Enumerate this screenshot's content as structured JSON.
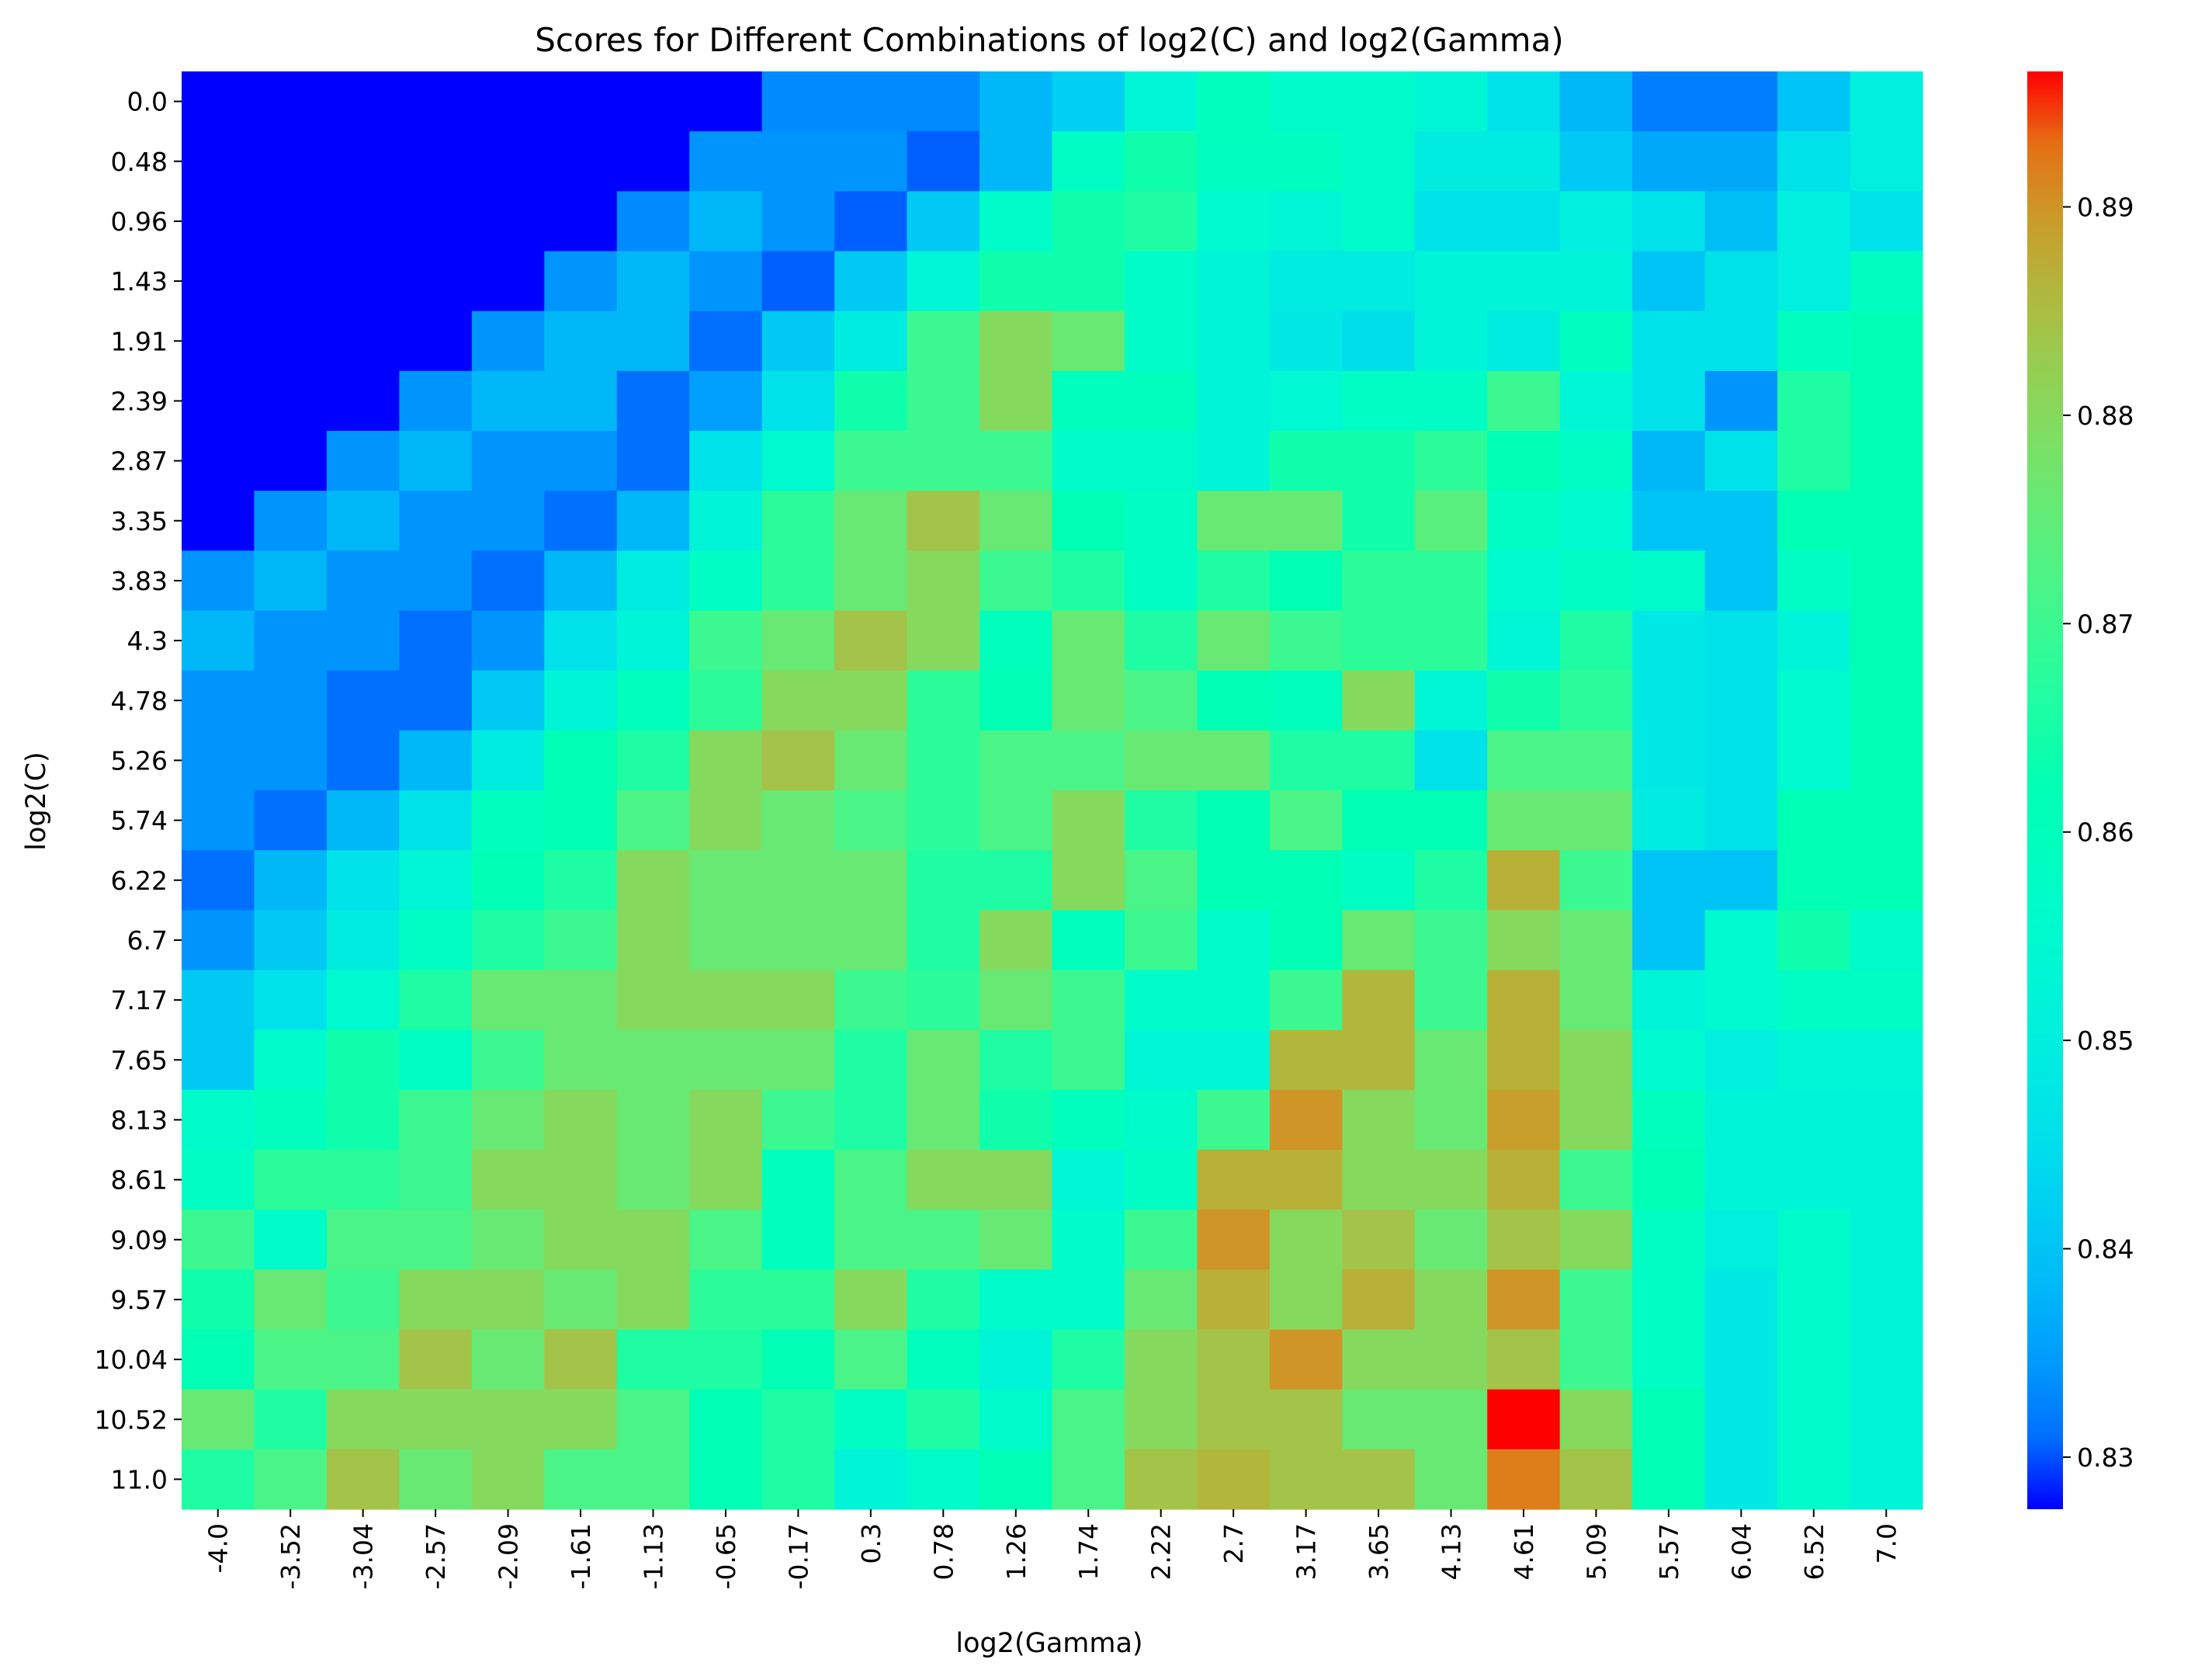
{
  "chart_data": {
    "type": "heatmap",
    "title": "Scores for Different Combinations of log2(C) and log2(Gamma)",
    "xlabel": "log2(Gamma)",
    "ylabel": "log2(C)",
    "x": [
      "-4.0",
      "-3.52",
      "-3.04",
      "-2.57",
      "-2.09",
      "-1.61",
      "-1.13",
      "-0.65",
      "-0.17",
      "0.3",
      "0.78",
      "1.26",
      "1.74",
      "2.22",
      "2.7",
      "3.17",
      "3.65",
      "4.13",
      "4.61",
      "5.09",
      "5.57",
      "6.04",
      "6.52",
      "7.0"
    ],
    "y": [
      "0.0",
      "0.48",
      "0.96",
      "1.43",
      "1.91",
      "2.39",
      "2.87",
      "3.35",
      "3.83",
      "4.3",
      "4.78",
      "5.26",
      "5.74",
      "6.22",
      "6.7",
      "7.17",
      "7.65",
      "8.13",
      "8.61",
      "9.09",
      "9.57",
      "10.04",
      "10.52",
      "11.0"
    ],
    "colormap": "rainbow",
    "vmin": 0.8275,
    "vmax": 0.8965,
    "colorbar_ticks": [
      "0.83",
      "0.84",
      "0.85",
      "0.86",
      "0.87",
      "0.88",
      "0.89"
    ],
    "colorbar_tick_values": [
      0.83,
      0.84,
      0.85,
      0.86,
      0.87,
      0.88,
      0.89
    ],
    "values": [
      [
        0.8275,
        0.8275,
        0.8275,
        0.8275,
        0.8275,
        0.8275,
        0.8275,
        0.8275,
        0.833,
        0.833,
        0.833,
        0.838,
        0.842,
        0.853,
        0.86,
        0.856,
        0.856,
        0.853,
        0.846,
        0.838,
        0.832,
        0.832,
        0.84,
        0.85
      ],
      [
        0.8275,
        0.8275,
        0.8275,
        0.8275,
        0.8275,
        0.8275,
        0.8275,
        0.834,
        0.834,
        0.834,
        0.83,
        0.838,
        0.858,
        0.864,
        0.859,
        0.859,
        0.856,
        0.849,
        0.849,
        0.841,
        0.836,
        0.836,
        0.846,
        0.85
      ],
      [
        0.8275,
        0.8275,
        0.8275,
        0.8275,
        0.8275,
        0.8275,
        0.833,
        0.838,
        0.834,
        0.83,
        0.841,
        0.857,
        0.864,
        0.866,
        0.855,
        0.853,
        0.856,
        0.846,
        0.846,
        0.85,
        0.846,
        0.839,
        0.85,
        0.846
      ],
      [
        0.8275,
        0.8275,
        0.8275,
        0.8275,
        0.8275,
        0.834,
        0.838,
        0.834,
        0.83,
        0.841,
        0.853,
        0.864,
        0.864,
        0.857,
        0.852,
        0.849,
        0.849,
        0.852,
        0.852,
        0.852,
        0.84,
        0.846,
        0.85,
        0.859
      ],
      [
        0.8275,
        0.8275,
        0.8275,
        0.8275,
        0.834,
        0.838,
        0.838,
        0.831,
        0.841,
        0.849,
        0.87,
        0.88,
        0.876,
        0.857,
        0.852,
        0.848,
        0.845,
        0.852,
        0.849,
        0.859,
        0.846,
        0.846,
        0.859,
        0.862
      ],
      [
        0.8275,
        0.8275,
        0.8275,
        0.834,
        0.838,
        0.838,
        0.831,
        0.835,
        0.846,
        0.864,
        0.87,
        0.88,
        0.86,
        0.86,
        0.852,
        0.854,
        0.858,
        0.858,
        0.87,
        0.853,
        0.846,
        0.834,
        0.866,
        0.862
      ],
      [
        0.8275,
        0.8275,
        0.834,
        0.838,
        0.834,
        0.834,
        0.831,
        0.846,
        0.855,
        0.87,
        0.87,
        0.87,
        0.856,
        0.856,
        0.852,
        0.864,
        0.864,
        0.868,
        0.862,
        0.858,
        0.838,
        0.846,
        0.866,
        0.862
      ],
      [
        0.8275,
        0.834,
        0.838,
        0.834,
        0.834,
        0.831,
        0.838,
        0.852,
        0.868,
        0.876,
        0.884,
        0.876,
        0.862,
        0.858,
        0.876,
        0.876,
        0.864,
        0.874,
        0.858,
        0.855,
        0.84,
        0.84,
        0.862,
        0.862
      ],
      [
        0.834,
        0.838,
        0.834,
        0.834,
        0.831,
        0.838,
        0.849,
        0.858,
        0.868,
        0.876,
        0.88,
        0.87,
        0.866,
        0.858,
        0.866,
        0.862,
        0.868,
        0.868,
        0.855,
        0.858,
        0.856,
        0.84,
        0.858,
        0.862
      ],
      [
        0.838,
        0.834,
        0.834,
        0.831,
        0.834,
        0.846,
        0.852,
        0.87,
        0.876,
        0.884,
        0.88,
        0.86,
        0.876,
        0.866,
        0.876,
        0.87,
        0.868,
        0.868,
        0.853,
        0.866,
        0.848,
        0.846,
        0.852,
        0.862
      ],
      [
        0.834,
        0.834,
        0.831,
        0.831,
        0.841,
        0.852,
        0.86,
        0.868,
        0.88,
        0.88,
        0.868,
        0.862,
        0.876,
        0.872,
        0.862,
        0.86,
        0.88,
        0.853,
        0.864,
        0.868,
        0.848,
        0.846,
        0.855,
        0.862
      ],
      [
        0.834,
        0.834,
        0.831,
        0.838,
        0.849,
        0.862,
        0.866,
        0.88,
        0.884,
        0.876,
        0.868,
        0.872,
        0.872,
        0.876,
        0.876,
        0.866,
        0.866,
        0.846,
        0.872,
        0.872,
        0.848,
        0.846,
        0.855,
        0.862
      ],
      [
        0.834,
        0.831,
        0.838,
        0.846,
        0.86,
        0.862,
        0.872,
        0.88,
        0.876,
        0.872,
        0.868,
        0.872,
        0.88,
        0.866,
        0.862,
        0.872,
        0.862,
        0.862,
        0.876,
        0.876,
        0.849,
        0.846,
        0.862,
        0.862
      ],
      [
        0.831,
        0.838,
        0.846,
        0.853,
        0.862,
        0.866,
        0.88,
        0.876,
        0.876,
        0.876,
        0.866,
        0.866,
        0.88,
        0.872,
        0.862,
        0.862,
        0.858,
        0.866,
        0.887,
        0.87,
        0.84,
        0.84,
        0.862,
        0.862
      ],
      [
        0.834,
        0.841,
        0.849,
        0.858,
        0.866,
        0.87,
        0.88,
        0.876,
        0.876,
        0.876,
        0.866,
        0.88,
        0.86,
        0.87,
        0.856,
        0.862,
        0.876,
        0.87,
        0.88,
        0.876,
        0.84,
        0.855,
        0.864,
        0.856
      ],
      [
        0.841,
        0.846,
        0.855,
        0.866,
        0.876,
        0.876,
        0.88,
        0.88,
        0.88,
        0.87,
        0.868,
        0.876,
        0.87,
        0.856,
        0.856,
        0.87,
        0.886,
        0.87,
        0.887,
        0.876,
        0.852,
        0.855,
        0.858,
        0.858
      ],
      [
        0.841,
        0.856,
        0.864,
        0.858,
        0.87,
        0.876,
        0.876,
        0.876,
        0.876,
        0.866,
        0.876,
        0.866,
        0.87,
        0.853,
        0.853,
        0.886,
        0.886,
        0.876,
        0.887,
        0.88,
        0.855,
        0.85,
        0.853,
        0.853
      ],
      [
        0.856,
        0.86,
        0.864,
        0.87,
        0.876,
        0.88,
        0.876,
        0.88,
        0.87,
        0.866,
        0.876,
        0.864,
        0.86,
        0.856,
        0.87,
        0.89,
        0.88,
        0.876,
        0.889,
        0.88,
        0.86,
        0.852,
        0.852,
        0.852
      ],
      [
        0.858,
        0.868,
        0.868,
        0.87,
        0.88,
        0.88,
        0.876,
        0.88,
        0.86,
        0.872,
        0.88,
        0.88,
        0.853,
        0.858,
        0.887,
        0.887,
        0.88,
        0.88,
        0.887,
        0.87,
        0.862,
        0.852,
        0.852,
        0.852
      ],
      [
        0.87,
        0.856,
        0.872,
        0.872,
        0.876,
        0.88,
        0.88,
        0.872,
        0.86,
        0.872,
        0.872,
        0.876,
        0.856,
        0.87,
        0.89,
        0.88,
        0.884,
        0.876,
        0.884,
        0.88,
        0.858,
        0.85,
        0.856,
        0.852
      ],
      [
        0.864,
        0.876,
        0.87,
        0.88,
        0.88,
        0.876,
        0.88,
        0.868,
        0.868,
        0.88,
        0.866,
        0.856,
        0.856,
        0.876,
        0.887,
        0.88,
        0.887,
        0.88,
        0.89,
        0.87,
        0.858,
        0.848,
        0.856,
        0.852
      ],
      [
        0.862,
        0.872,
        0.872,
        0.884,
        0.876,
        0.884,
        0.866,
        0.866,
        0.862,
        0.872,
        0.86,
        0.852,
        0.866,
        0.88,
        0.884,
        0.89,
        0.88,
        0.88,
        0.884,
        0.87,
        0.858,
        0.848,
        0.856,
        0.852
      ],
      [
        0.876,
        0.866,
        0.88,
        0.88,
        0.88,
        0.88,
        0.872,
        0.862,
        0.866,
        0.858,
        0.866,
        0.856,
        0.872,
        0.88,
        0.884,
        0.884,
        0.876,
        0.876,
        0.8965,
        0.88,
        0.862,
        0.848,
        0.856,
        0.852
      ],
      [
        0.866,
        0.872,
        0.884,
        0.876,
        0.88,
        0.872,
        0.872,
        0.862,
        0.866,
        0.852,
        0.856,
        0.862,
        0.872,
        0.884,
        0.886,
        0.884,
        0.884,
        0.876,
        0.892,
        0.884,
        0.862,
        0.848,
        0.856,
        0.852
      ]
    ]
  }
}
